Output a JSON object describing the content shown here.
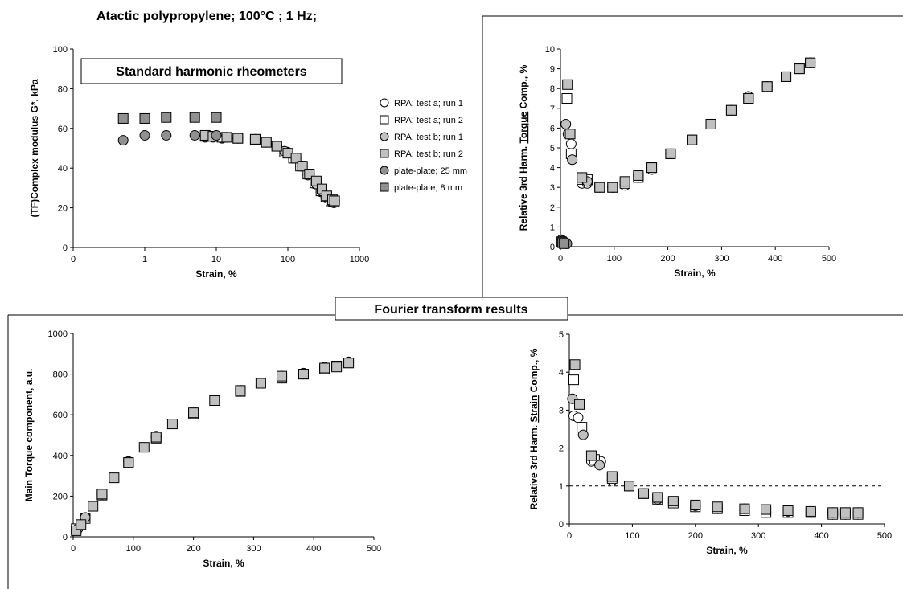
{
  "figure_title": "Atactic polypropylene; 100°C ; 1 Hz;",
  "section_label": "Fourier transform results",
  "legend_entries": [
    {
      "name": "RPA; test a; run 1",
      "marker": "circle",
      "fill": "#ffffff"
    },
    {
      "name": "RPA; test a; run 2",
      "marker": "square",
      "fill": "#ffffff"
    },
    {
      "name": "RPA, test b; run 1",
      "marker": "circle",
      "fill": "#c0c0c0"
    },
    {
      "name": "RPA; test b; run 2",
      "marker": "square",
      "fill": "#c0c0c0"
    },
    {
      "name": "plate-plate; 25 mm",
      "marker": "circle",
      "fill": "#909090"
    },
    {
      "name": "plate-plate; 8 mm",
      "marker": "square",
      "fill": "#909090"
    }
  ],
  "chart_data": [
    {
      "id": "modulus",
      "type": "scatter",
      "title": "",
      "annotation": "Standard harmonic rheometers",
      "xlabel": "Strain, %",
      "ylabel": "(TF)Complex modulus G*, kPa",
      "xscale": "log",
      "xlim": [
        0.1,
        1000
      ],
      "ylim": [
        0,
        100
      ],
      "xticks": [
        "0",
        "1",
        "10",
        "100",
        "1000"
      ],
      "yticks": [
        "0",
        "20",
        "40",
        "60",
        "80",
        "100"
      ],
      "series": [
        {
          "name": "RPA; test a; run 1",
          "x": [
            7,
            9,
            12,
            20,
            35,
            50,
            70,
            90,
            120,
            150,
            190,
            240,
            290,
            340,
            400,
            440
          ],
          "y": [
            55.5,
            55.5,
            55,
            55,
            54.5,
            53,
            51,
            48.5,
            45,
            41,
            36.5,
            32,
            28,
            25,
            23,
            22.5
          ]
        },
        {
          "name": "RPA; test a; run 2",
          "x": [
            7,
            9,
            12,
            20,
            35,
            50,
            70,
            90,
            120,
            150,
            190,
            240,
            290,
            340,
            400,
            440
          ],
          "y": [
            56,
            56,
            55.5,
            55,
            54.5,
            53,
            51,
            48,
            45,
            41,
            37,
            32.5,
            28.5,
            25.5,
            23.5,
            23
          ]
        },
        {
          "name": "RPA, test b; run 1",
          "x": [
            7,
            9,
            14,
            20,
            35,
            50,
            70,
            90,
            130,
            160,
            200,
            250,
            300,
            350,
            420,
            450
          ],
          "y": [
            56,
            56,
            55.5,
            55,
            54.5,
            53,
            51,
            48.5,
            45,
            41,
            37,
            32,
            28.5,
            25.5,
            23,
            23.5
          ]
        },
        {
          "name": "RPA; test b; run 2",
          "x": [
            7,
            9,
            14,
            20,
            35,
            50,
            70,
            100,
            130,
            160,
            200,
            250,
            300,
            350,
            420,
            450
          ],
          "y": [
            56.5,
            56,
            55.5,
            55,
            54.5,
            53,
            51,
            47.5,
            45,
            41,
            37,
            33.5,
            29.5,
            26,
            24,
            23.5
          ]
        },
        {
          "name": "plate-plate; 25 mm",
          "x": [
            0.5,
            1,
            2,
            5,
            10
          ],
          "y": [
            54,
            56.5,
            56.5,
            56.5,
            56.5
          ]
        },
        {
          "name": "plate-plate; 8 mm",
          "x": [
            0.5,
            1,
            2,
            5,
            10
          ],
          "y": [
            65,
            65,
            65.5,
            65.5,
            65.5
          ]
        }
      ]
    },
    {
      "id": "torque3",
      "type": "scatter",
      "title": "",
      "xlabel": "Strain, %",
      "ylabel": "Relative 3rd Harm. Torque Comp., %",
      "ylabel_parts": [
        "Relative 3rd Harm. ",
        "Torque",
        " Comp., %"
      ],
      "xlim": [
        0,
        500
      ],
      "ylim": [
        0,
        10
      ],
      "xticks": [
        "0",
        "100",
        "200",
        "300",
        "400",
        "500"
      ],
      "yticks": [
        "0",
        "1",
        "2",
        "3",
        "4",
        "5",
        "6",
        "7",
        "8",
        "9",
        "10"
      ],
      "series": [
        {
          "name": "RPA; test a; run 1",
          "x": [
            14,
            20,
            40,
            50,
            73,
            97,
            120,
            145,
            170,
            205,
            245,
            280,
            318,
            350,
            385,
            420,
            445,
            465
          ],
          "y": [
            5.7,
            5.2,
            3.2,
            3.2,
            3.0,
            3.0,
            3.1,
            3.5,
            3.9,
            4.7,
            5.4,
            6.2,
            6.9,
            7.5,
            8.1,
            8.6,
            9.0,
            9.3
          ]
        },
        {
          "name": "RPA; test a; run 2",
          "x": [
            12,
            20,
            40,
            50,
            73,
            97,
            120,
            145,
            170,
            205,
            245,
            280,
            318,
            350,
            385,
            420,
            445,
            465
          ],
          "y": [
            7.5,
            4.7,
            3.4,
            3.4,
            3.0,
            3.0,
            3.2,
            3.5,
            4.0,
            4.7,
            5.4,
            6.2,
            6.9,
            7.5,
            8.1,
            8.6,
            9.0,
            9.3
          ]
        },
        {
          "name": "RPA, test b; run 1",
          "x": [
            10,
            22,
            50,
            97,
            145,
            205,
            280,
            350,
            420,
            465
          ],
          "y": [
            6.2,
            4.4,
            3.3,
            3.0,
            3.6,
            4.7,
            6.2,
            7.6,
            8.6,
            9.3
          ]
        },
        {
          "name": "RPA; test b; run 2",
          "x": [
            13,
            18,
            40,
            73,
            97,
            120,
            145,
            170,
            205,
            245,
            280,
            318,
            350,
            385,
            420,
            445,
            465
          ],
          "y": [
            8.2,
            5.7,
            3.5,
            3.0,
            3.0,
            3.3,
            3.6,
            4.0,
            4.7,
            5.4,
            6.2,
            6.9,
            7.5,
            8.1,
            8.6,
            9.0,
            9.3
          ]
        },
        {
          "name": "plate-plate; 25 mm",
          "x": [
            2,
            4,
            7,
            12
          ],
          "y": [
            0.35,
            0.3,
            0.2,
            0.15
          ]
        },
        {
          "name": "plate-plate; 8 mm",
          "x": [
            2,
            4,
            7
          ],
          "y": [
            0.25,
            0.2,
            0.15
          ]
        }
      ]
    },
    {
      "id": "main_torque",
      "type": "scatter",
      "title": "",
      "xlabel": "Strain, %",
      "ylabel": "Main Torque component, a.u.",
      "xlim": [
        0,
        500
      ],
      "ylim": [
        0,
        1000
      ],
      "xticks": [
        "0",
        "100",
        "200",
        "300",
        "400",
        "500"
      ],
      "yticks": [
        "0",
        "200",
        "400",
        "600",
        "800",
        "1000"
      ],
      "series": [
        {
          "name": "RPA; test a; run 1",
          "x": [
            5,
            20,
            48,
            92,
            138,
            200,
            278,
            347,
            383,
            418,
            438,
            458
          ],
          "y": [
            35,
            95,
            210,
            370,
            490,
            610,
            720,
            780,
            800,
            830,
            840,
            860
          ]
        },
        {
          "name": "RPA; test a; run 2",
          "x": [
            5,
            20,
            48,
            92,
            138,
            200,
            278,
            347,
            383,
            418,
            438,
            458
          ],
          "y": [
            40,
            90,
            205,
            365,
            485,
            605,
            715,
            780,
            800,
            825,
            840,
            855
          ]
        },
        {
          "name": "RPA, test b; run 1",
          "x": [
            8,
            20,
            48,
            92,
            138,
            200,
            278,
            347,
            383,
            418,
            458
          ],
          "y": [
            40,
            95,
            210,
            370,
            495,
            615,
            720,
            790,
            805,
            835,
            860
          ]
        },
        {
          "name": "RPA; test b; run 2",
          "x": [
            5,
            13,
            33,
            48,
            68,
            92,
            118,
            138,
            165,
            200,
            235,
            278,
            312,
            347,
            383,
            418,
            438,
            458
          ],
          "y": [
            30,
            60,
            150,
            210,
            290,
            365,
            440,
            490,
            555,
            610,
            670,
            720,
            755,
            790,
            800,
            830,
            835,
            855
          ]
        }
      ]
    },
    {
      "id": "strain3",
      "type": "scatter",
      "title": "",
      "xlabel": "Strain, %",
      "ylabel": "Relative 3rd Harm. Strain Comp., %",
      "ylabel_parts": [
        "Relative 3rd Harm. ",
        "Strain",
        " Comp., %"
      ],
      "xlim": [
        0,
        500
      ],
      "ylim": [
        0,
        5
      ],
      "reference_line_y": 1,
      "xticks": [
        "0",
        "100",
        "200",
        "300",
        "400",
        "500"
      ],
      "yticks": [
        "0",
        "1",
        "2",
        "3",
        "4",
        "5"
      ],
      "series": [
        {
          "name": "RPA; test a; run 1",
          "x": [
            7,
            14,
            35,
            50,
            68,
            95,
            118,
            140,
            165,
            200,
            235,
            278,
            312,
            347,
            383,
            418,
            438,
            458
          ],
          "y": [
            2.85,
            2.8,
            1.65,
            1.65,
            1.15,
            1.0,
            0.8,
            0.65,
            0.55,
            0.45,
            0.4,
            0.35,
            0.3,
            0.3,
            0.3,
            0.25,
            0.25,
            0.25
          ]
        },
        {
          "name": "RPA; test a; run 2",
          "x": [
            7,
            20,
            40,
            68,
            95,
            118,
            140,
            165,
            200,
            235,
            278,
            312,
            347,
            383,
            418,
            438,
            458
          ],
          "y": [
            3.8,
            2.55,
            1.7,
            1.2,
            1.0,
            0.8,
            0.65,
            0.55,
            0.45,
            0.4,
            0.35,
            0.3,
            0.3,
            0.3,
            0.25,
            0.25,
            0.25
          ]
        },
        {
          "name": "RPA, test b; run 1",
          "x": [
            5,
            22,
            48,
            95,
            140,
            200,
            278,
            347,
            418,
            458
          ],
          "y": [
            3.3,
            2.35,
            1.55,
            1.0,
            0.65,
            0.48,
            0.4,
            0.33,
            0.3,
            0.3
          ]
        },
        {
          "name": "RPA; test b; run 2",
          "x": [
            9,
            16,
            35,
            68,
            95,
            118,
            140,
            165,
            200,
            235,
            278,
            312,
            347,
            383,
            418,
            438,
            458
          ],
          "y": [
            4.2,
            3.15,
            1.8,
            1.25,
            1.0,
            0.8,
            0.7,
            0.6,
            0.5,
            0.45,
            0.4,
            0.38,
            0.35,
            0.33,
            0.3,
            0.3,
            0.3
          ]
        }
      ]
    }
  ]
}
